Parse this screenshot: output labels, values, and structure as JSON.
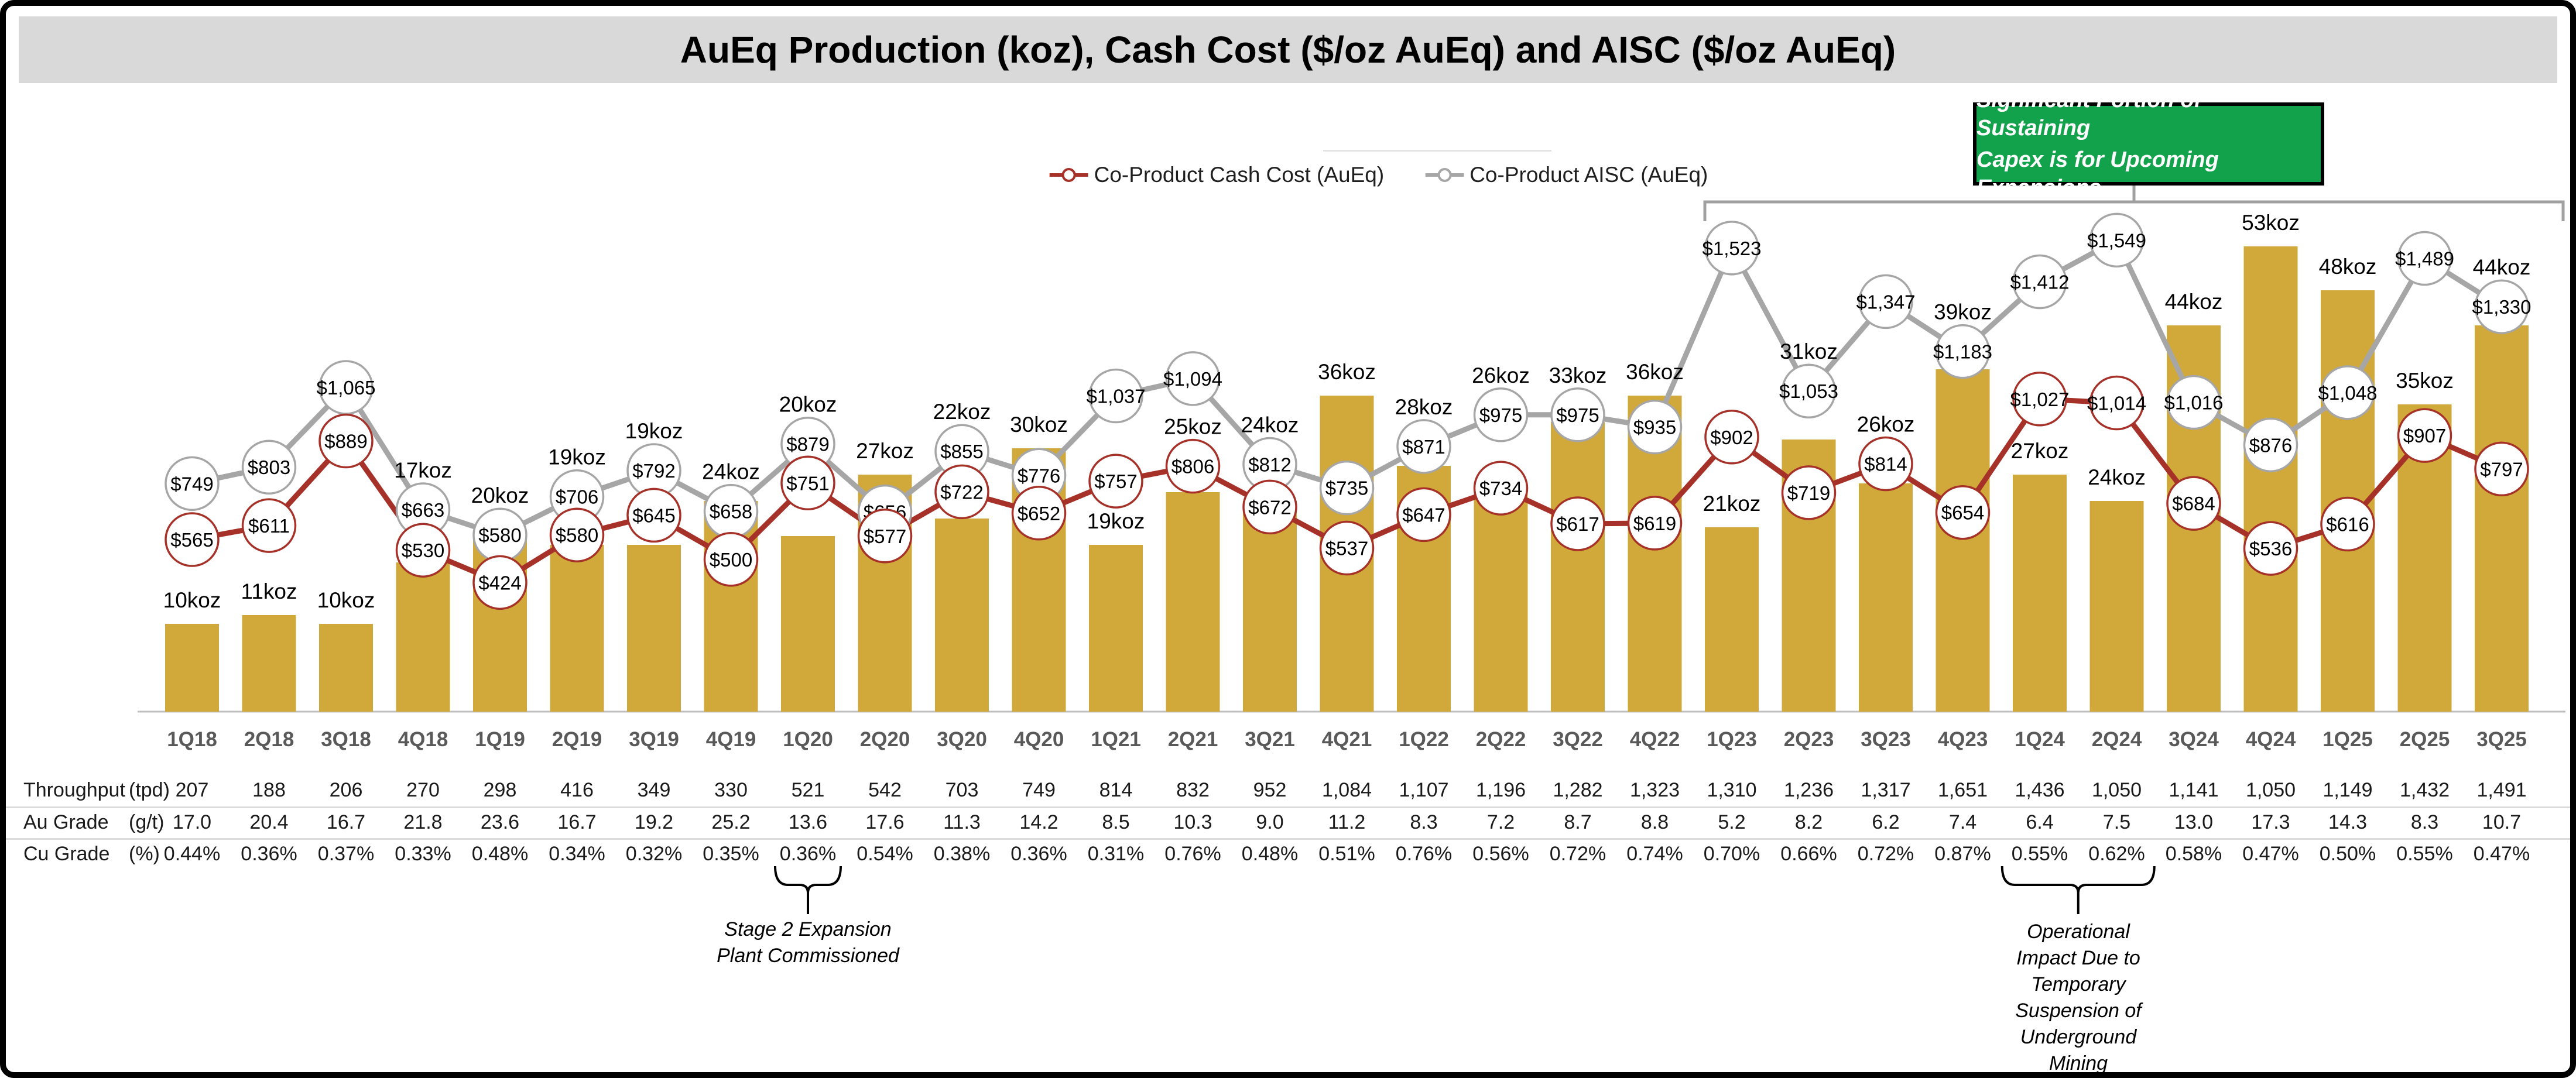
{
  "title": "AuEq Production (koz), Cash Cost ($/oz AuEq) and AISC ($/oz AuEq)",
  "legend": {
    "cash_cost_label": "Co-Product Cash Cost (AuEq)",
    "aisc_label": "Co-Product AISC (AuEq)"
  },
  "annotations": {
    "capex_lines": [
      "Significant Portion of Sustaining",
      "Capex is for Upcoming Expansions"
    ],
    "capex_bracket_from": "1Q23",
    "capex_bracket_to": "3Q25",
    "stage2_lines": [
      "Stage 2 Expansion",
      "Plant Commissioned"
    ],
    "stage2_target": "1Q20",
    "operational_lines": [
      "Operational",
      "Impact Due to",
      "Temporary",
      "Suspension of",
      "Underground",
      "Mining"
    ],
    "operational_target_from": "1Q24",
    "operational_target_to": "2Q24"
  },
  "colors": {
    "bar": "#D1A93B",
    "cash_cost": "#A63129",
    "aisc": "#A6A6A6",
    "title_band_bg": "#D9D9D9",
    "green_box_bg": "#12A24B",
    "axis": "#BFBFBF",
    "quarter_label": "#595959",
    "bracket": "#A0A0A0"
  },
  "chart_data": {
    "type": "bar+line combo",
    "title": "AuEq Production (koz), Cash Cost ($/oz AuEq) and AISC ($/oz AuEq)",
    "categories": [
      "1Q18",
      "2Q18",
      "3Q18",
      "4Q18",
      "1Q19",
      "2Q19",
      "3Q19",
      "4Q19",
      "1Q20",
      "2Q20",
      "3Q20",
      "4Q20",
      "1Q21",
      "2Q21",
      "3Q21",
      "4Q21",
      "1Q22",
      "2Q22",
      "3Q22",
      "4Q22",
      "1Q23",
      "2Q23",
      "3Q23",
      "4Q23",
      "1Q24",
      "2Q24",
      "3Q24",
      "4Q24",
      "1Q25",
      "2Q25",
      "3Q25"
    ],
    "series": [
      {
        "name": "AuEq Production",
        "type": "bar",
        "unit": "koz",
        "values": [
          10,
          11,
          10,
          17,
          20,
          19,
          19,
          24,
          20,
          27,
          22,
          30,
          19,
          25,
          24,
          36,
          28,
          26,
          33,
          36,
          21,
          31,
          26,
          39,
          27,
          24,
          44,
          53,
          48,
          35,
          44
        ]
      },
      {
        "name": "Co-Product Cash Cost (AuEq)",
        "type": "line",
        "unit": "$/oz",
        "values": [
          565,
          611,
          889,
          530,
          424,
          580,
          645,
          500,
          751,
          577,
          722,
          652,
          757,
          806,
          672,
          537,
          647,
          734,
          617,
          619,
          902,
          719,
          814,
          654,
          1027,
          1014,
          684,
          536,
          616,
          907,
          797
        ]
      },
      {
        "name": "Co-Product AISC (AuEq)",
        "type": "line",
        "unit": "$/oz",
        "values": [
          749,
          803,
          1065,
          663,
          580,
          706,
          792,
          658,
          879,
          656,
          855,
          776,
          1037,
          1094,
          812,
          735,
          871,
          975,
          975,
          935,
          1523,
          1053,
          1347,
          1183,
          1412,
          1549,
          1016,
          876,
          1048,
          1489,
          1330
        ]
      }
    ],
    "legend_position": "top-center",
    "grid": "off",
    "table": {
      "rows": [
        {
          "label": "Throughput",
          "unit": "(tpd)",
          "values": [
            "207",
            "188",
            "206",
            "270",
            "298",
            "416",
            "349",
            "330",
            "521",
            "542",
            "703",
            "749",
            "814",
            "832",
            "952",
            "1,084",
            "1,107",
            "1,196",
            "1,282",
            "1,323",
            "1,310",
            "1,236",
            "1,317",
            "1,651",
            "1,436",
            "1,050",
            "1,141",
            "1,050",
            "1,149",
            "1,432",
            "1,491"
          ]
        },
        {
          "label": "Au Grade",
          "unit": "(g/t)",
          "values": [
            "17.0",
            "20.4",
            "16.7",
            "21.8",
            "23.6",
            "16.7",
            "19.2",
            "25.2",
            "13.6",
            "17.6",
            "11.3",
            "14.2",
            "8.5",
            "10.3",
            "9.0",
            "11.2",
            "8.3",
            "7.2",
            "8.7",
            "8.8",
            "5.2",
            "8.2",
            "6.2",
            "7.4",
            "6.4",
            "7.5",
            "13.0",
            "17.3",
            "14.3",
            "8.3",
            "10.7"
          ]
        },
        {
          "label": "Cu Grade",
          "unit": "(%)",
          "values": [
            "0.44%",
            "0.36%",
            "0.37%",
            "0.33%",
            "0.48%",
            "0.34%",
            "0.32%",
            "0.35%",
            "0.36%",
            "0.54%",
            "0.38%",
            "0.36%",
            "0.31%",
            "0.76%",
            "0.48%",
            "0.51%",
            "0.76%",
            "0.56%",
            "0.72%",
            "0.74%",
            "0.70%",
            "0.66%",
            "0.72%",
            "0.87%",
            "0.55%",
            "0.62%",
            "0.58%",
            "0.47%",
            "0.50%",
            "0.55%",
            "0.47%"
          ]
        }
      ]
    }
  }
}
